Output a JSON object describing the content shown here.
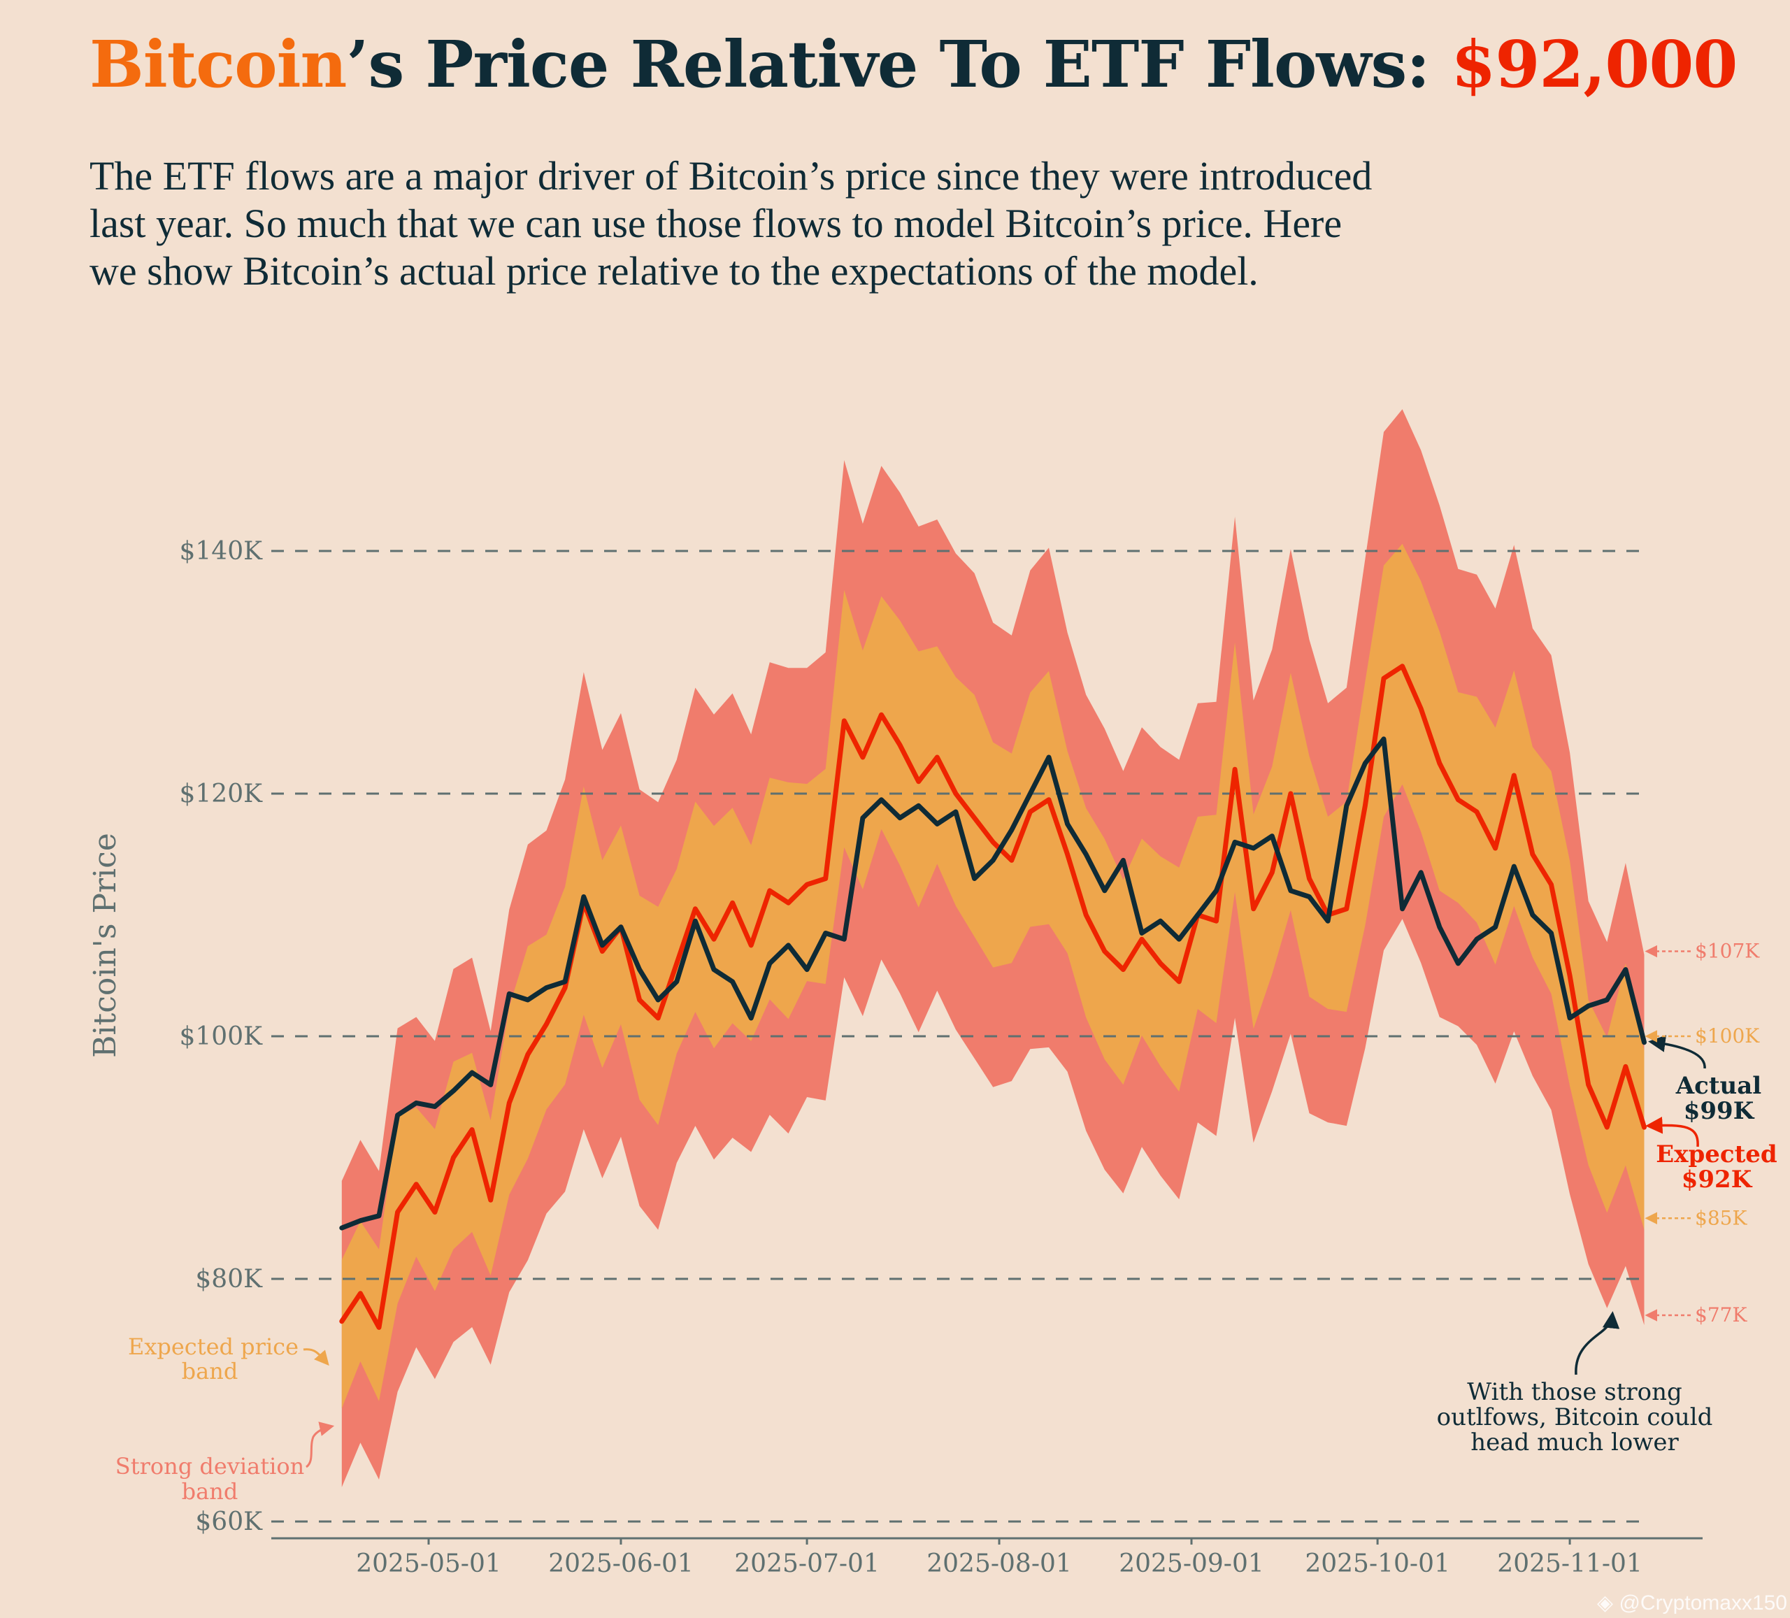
{
  "header": {
    "title_part1": "Bitcoin",
    "title_part2": "’s Price Relative To ETF Flows: ",
    "title_part3": "$92,000",
    "subtitle_lines": [
      "The ETF flows are a major driver of Bitcoin’s price since they were introduced",
      "last year. So much that we can use those flows to model Bitcoin’s price. Here",
      "we show Bitcoin’s actual price relative to the expectations of the model."
    ]
  },
  "colors": {
    "background": "#F3E0D0",
    "strong_band": "#F07C6C",
    "expected_band": "#EEA64C",
    "expected_line": "#EE2400",
    "actual_line": "#0F2B36",
    "axis_text": "#5F7070",
    "title_orange": "#F46B0E"
  },
  "chart_data": {
    "type": "line",
    "title": "Bitcoin’s Price Relative To ETF Flows: $92,000",
    "xlabel": "",
    "ylabel": "Bitcoin's Price",
    "x_tick_labels": [
      "2025-05-01",
      "2025-06-01",
      "2025-07-01",
      "2025-08-01",
      "2025-09-01",
      "2025-10-01",
      "2025-11-01"
    ],
    "y_tick_labels": [
      "$60K",
      "$80K",
      "$100K",
      "$120K",
      "$140K"
    ],
    "y_ticks": [
      60,
      80,
      100,
      120,
      140
    ],
    "ylim": [
      60,
      151
    ],
    "xlim": [
      "2025-04-04",
      "2025-11-24"
    ],
    "grid": "horizontal dashed",
    "units": "thousand USD",
    "x": [
      "2025-04-17",
      "2025-04-20",
      "2025-04-23",
      "2025-04-26",
      "2025-04-29",
      "2025-05-02",
      "2025-05-05",
      "2025-05-08",
      "2025-05-11",
      "2025-05-14",
      "2025-05-17",
      "2025-05-20",
      "2025-05-23",
      "2025-05-26",
      "2025-05-29",
      "2025-06-01",
      "2025-06-04",
      "2025-06-07",
      "2025-06-10",
      "2025-06-13",
      "2025-06-16",
      "2025-06-19",
      "2025-06-22",
      "2025-06-25",
      "2025-06-28",
      "2025-07-01",
      "2025-07-04",
      "2025-07-07",
      "2025-07-10",
      "2025-07-13",
      "2025-07-16",
      "2025-07-19",
      "2025-07-22",
      "2025-07-25",
      "2025-07-28",
      "2025-07-31",
      "2025-08-03",
      "2025-08-06",
      "2025-08-09",
      "2025-08-12",
      "2025-08-15",
      "2025-08-18",
      "2025-08-21",
      "2025-08-24",
      "2025-08-27",
      "2025-08-30",
      "2025-09-02",
      "2025-09-05",
      "2025-09-08",
      "2025-09-11",
      "2025-09-14",
      "2025-09-17",
      "2025-09-20",
      "2025-09-23",
      "2025-09-26",
      "2025-09-29",
      "2025-10-02",
      "2025-10-05",
      "2025-10-08",
      "2025-10-11",
      "2025-10-14",
      "2025-10-17",
      "2025-10-20",
      "2025-10-23",
      "2025-10-26",
      "2025-10-29",
      "2025-11-01",
      "2025-11-04",
      "2025-11-07",
      "2025-11-10",
      "2025-11-13"
    ],
    "series": [
      {
        "name": "Expected",
        "values": [
          76.5,
          78.8,
          76.0,
          85.5,
          87.8,
          85.5,
          90.0,
          92.3,
          86.5,
          94.5,
          98.5,
          101.0,
          104.0,
          111.0,
          107.0,
          109.0,
          103.0,
          101.5,
          106.0,
          110.5,
          108.0,
          111.0,
          107.5,
          112.0,
          111.0,
          112.5,
          113.0,
          126.0,
          123.0,
          126.5,
          124.0,
          121.0,
          123.0,
          120.0,
          118.0,
          116.0,
          114.5,
          118.5,
          119.5,
          115.0,
          110.0,
          107.0,
          105.5,
          108.0,
          106.0,
          104.5,
          110.0,
          109.5,
          122.0,
          110.5,
          113.5,
          120.0,
          113.0,
          110.0,
          110.5,
          119.0,
          129.5,
          130.5,
          127.0,
          122.5,
          119.5,
          118.5,
          115.5,
          121.5,
          115.0,
          112.5,
          105.0,
          96.0,
          92.5,
          97.5,
          92.5
        ]
      },
      {
        "name": "Actual",
        "values": [
          84.2,
          84.8,
          85.2,
          93.5,
          94.5,
          94.2,
          95.5,
          97.0,
          96.0,
          103.5,
          103.0,
          104.0,
          104.5,
          111.5,
          107.5,
          109.0,
          105.5,
          103.0,
          104.5,
          109.5,
          105.5,
          104.5,
          101.5,
          106.0,
          107.5,
          105.5,
          108.5,
          108.0,
          118.0,
          119.5,
          118.0,
          119.0,
          117.5,
          118.5,
          113.0,
          114.5,
          117.0,
          120.0,
          123.0,
          117.5,
          115.0,
          112.0,
          114.5,
          108.5,
          109.5,
          108.0,
          110.0,
          112.0,
          116.0,
          115.5,
          116.5,
          112.0,
          111.5,
          109.5,
          119.0,
          122.5,
          124.5,
          110.5,
          113.5,
          109.0,
          106.0,
          108.0,
          109.0,
          114.0,
          110.0,
          108.5,
          101.5,
          102.5,
          103.0,
          105.5,
          99.5
        ]
      }
    ],
    "bands": [
      {
        "name": "Expected price band",
        "relative_width": 0.08
      },
      {
        "name": "Strong deviation band",
        "relative_width": 0.165
      }
    ],
    "annotations": {
      "actual_label": "Actual",
      "actual_value": "$99K",
      "expected_label": "Expected",
      "expected_value": "$92K",
      "band_levels": [
        {
          "label": "$107K",
          "value": 107,
          "band": "strong"
        },
        {
          "label": "$100K",
          "value": 100,
          "band": "expected"
        },
        {
          "label": "$85K",
          "value": 85,
          "band": "expected"
        },
        {
          "label": "$77K",
          "value": 77,
          "band": "strong"
        }
      ],
      "expected_band_note": [
        "Expected price",
        "band"
      ],
      "strong_band_note": [
        "Strong deviation",
        "band"
      ],
      "outflow_note": [
        "With those strong",
        "outlfows, Bitcoin could",
        "head much lower"
      ]
    }
  },
  "watermark": "@Cryptomaxx150"
}
